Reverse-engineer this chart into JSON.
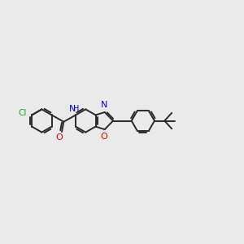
{
  "bg_color": "#eaeaea",
  "bond_color": "#2a2a2a",
  "atom_colors": {
    "Cl": "#22aa22",
    "O": "#ee0000",
    "N": "#0000ee",
    "C": "#2a2a2a"
  },
  "lw": 1.4,
  "ring_r": 0.48
}
